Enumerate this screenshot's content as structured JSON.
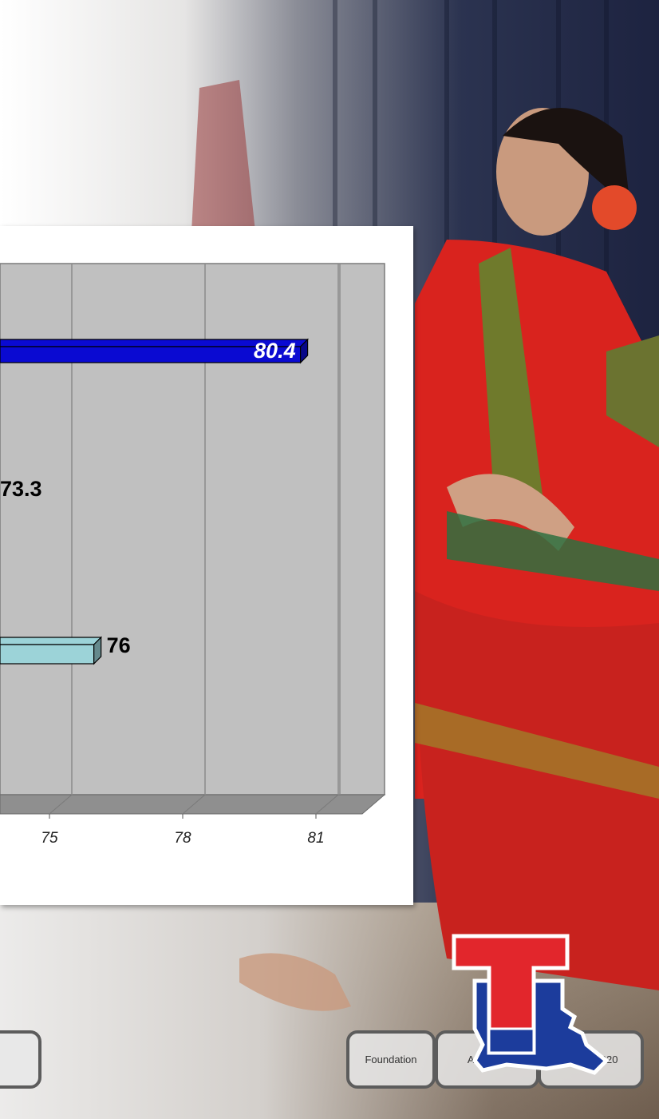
{
  "chart_data": {
    "type": "bar",
    "orientation": "horizontal",
    "style": "3d",
    "series": [
      {
        "values": [
          80.4
        ],
        "color": "#0a0ad2",
        "label_style": "white-italic-inside"
      },
      {
        "values": [
          73.3
        ],
        "color": "#c4c4c4",
        "label_style": "black-outside"
      },
      {
        "values": [
          76
        ],
        "color": "#9cd3d8",
        "label_style": "black-outside"
      }
    ],
    "x_ticks": [
      "75",
      "78",
      "81"
    ],
    "x_tick_values": [
      75,
      78,
      81
    ],
    "grid": true,
    "plot_background": "#c0c0c0"
  },
  "nav": {
    "tabs": [
      {
        "label": ""
      },
      {
        "label": "Foundation"
      },
      {
        "label": "Athletics"
      },
      {
        "label": "TECH 2020"
      }
    ]
  },
  "colors": {
    "logo_red": "#e2262c",
    "logo_blue": "#1c3c9c",
    "tab_border": "#5c5c5c"
  }
}
